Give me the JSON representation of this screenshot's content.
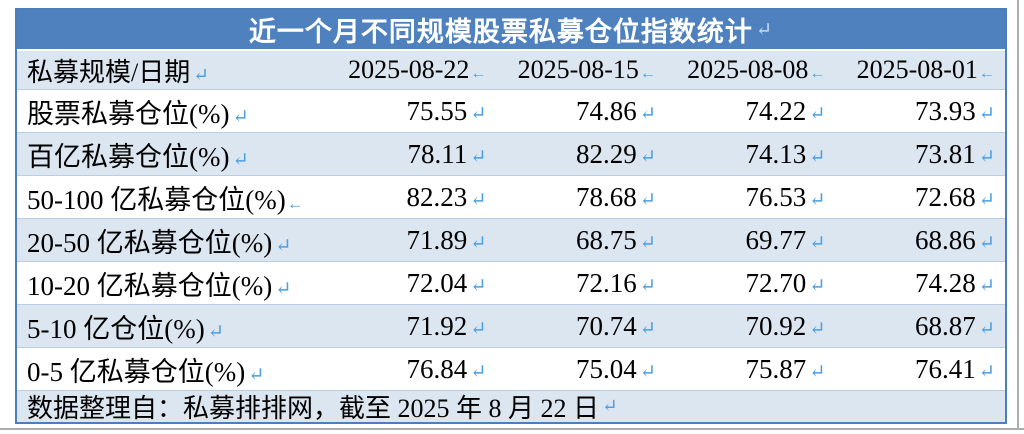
{
  "table": {
    "title": "近一个月不同规模股票私募仓位指数统计",
    "columns": [
      "私募规模/日期",
      "2025-08-22",
      "2025-08-15",
      "2025-08-08",
      "2025-08-01"
    ],
    "rows": [
      {
        "label": "股票私募仓位(%)",
        "values": [
          "75.55",
          "74.86",
          "74.22",
          "73.93"
        ]
      },
      {
        "label": "百亿私募仓位(%)",
        "values": [
          "78.11",
          "82.29",
          "74.13",
          "73.81"
        ]
      },
      {
        "label": "50-100 亿私募仓位(%)",
        "values": [
          "82.23",
          "78.68",
          "76.53",
          "72.68"
        ]
      },
      {
        "label": "20-50 亿私募仓位(%)",
        "values": [
          "71.89",
          "68.75",
          "69.77",
          "68.86"
        ]
      },
      {
        "label": "10-20 亿私募仓位(%)",
        "values": [
          "72.04",
          "72.16",
          "72.70",
          "74.28"
        ]
      },
      {
        "label": "5-10 亿仓位(%)",
        "values": [
          "71.92",
          "70.74",
          "70.92",
          "68.87"
        ]
      },
      {
        "label": "0-5 亿私募仓位(%)",
        "values": [
          "76.84",
          "75.04",
          "75.87",
          "76.41"
        ]
      }
    ],
    "footer": "数据整理自：私募排排网，截至 2025 年 8 月 22 日"
  },
  "marks": {
    "title": "↵",
    "header": "←",
    "cell": "↵"
  },
  "colors": {
    "title_bg": "#4e81bd",
    "band_bg": "#dce6f1",
    "table_border": "#4a7ebd",
    "row_divider": "#b9cde4",
    "mark_blue": "#4c9fe0",
    "page_edge_gray": "#acacac"
  }
}
